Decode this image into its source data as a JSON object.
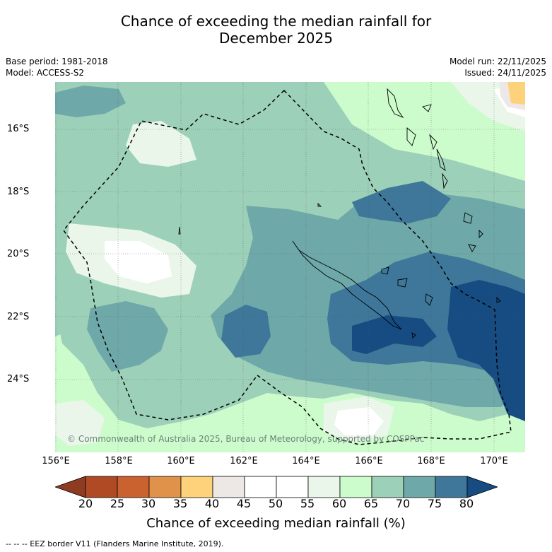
{
  "title": {
    "line1": "Chance of exceeding the median rainfall for",
    "line2": "December 2025"
  },
  "meta": {
    "base_period": "Base period: 1981-2018",
    "model": "Model: ACCESS-S2",
    "model_run": "Model run: 22/11/2025",
    "issued": "Issued: 24/11/2025"
  },
  "map": {
    "lat_labels": [
      "16°S",
      "18°S",
      "20°S",
      "22°S",
      "24°S"
    ],
    "lon_labels": [
      "156°E",
      "158°E",
      "160°E",
      "162°E",
      "164°E",
      "166°E",
      "168°E",
      "170°E"
    ],
    "copyright": "© Commonwealth of Australia 2025, Bureau of Meteorology, supported by COSPPac"
  },
  "legend": {
    "ticks": [
      "20",
      "25",
      "30",
      "35",
      "40",
      "45",
      "50",
      "55",
      "60",
      "65",
      "70",
      "75",
      "80"
    ],
    "colors": [
      "#8f3b22",
      "#b04a25",
      "#c9622f",
      "#e0914a",
      "#fdd27a",
      "#ede8e6",
      "#ffffff",
      "#ffffff",
      "#eaf6ea",
      "#ccfccc",
      "#9dd0b8",
      "#6ea8a8",
      "#3e7799",
      "#164c82"
    ],
    "title": "Chance of exceeding median rainfall (%)"
  },
  "footer": {
    "eez_note": "--  --  -- EEZ border V11 (Flanders Marine Institute, 2019)."
  }
}
